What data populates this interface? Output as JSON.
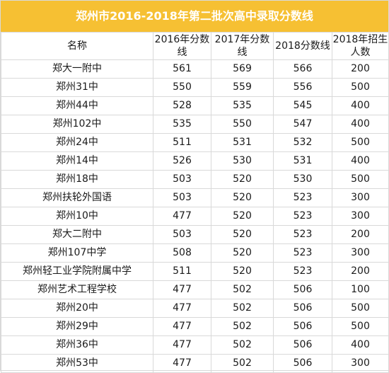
{
  "title": "郑州市2016-2018年第二批次高中录取分数线",
  "headers": [
    "名称",
    "2016年分数线",
    "2017年分数线",
    "2018分数线",
    "2018年招生人数"
  ],
  "rows": [
    [
      "郑大一附中",
      "561",
      "569",
      "566",
      "200"
    ],
    [
      "郑州31中",
      "550",
      "559",
      "556",
      "500"
    ],
    [
      "郑州44中",
      "528",
      "535",
      "545",
      "400"
    ],
    [
      "郑州102中",
      "535",
      "550",
      "547",
      "400"
    ],
    [
      "郑州24中",
      "511",
      "531",
      "532",
      "500"
    ],
    [
      "郑州14中",
      "526",
      "530",
      "531",
      "400"
    ],
    [
      "郑州18中",
      "503",
      "520",
      "530",
      "500"
    ],
    [
      "郑州扶轮外国语",
      "503",
      "520",
      "523",
      "300"
    ],
    [
      "郑州10中",
      "477",
      "520",
      "523",
      "300"
    ],
    [
      "郑大二附中",
      "503",
      "520",
      "523",
      "200"
    ],
    [
      "郑州107中学",
      "508",
      "520",
      "523",
      "300"
    ],
    [
      "郑州轻工业学院附属中学",
      "511",
      "520",
      "523",
      "200"
    ],
    [
      "郑州艺术工程学校",
      "477",
      "502",
      "506",
      "100"
    ],
    [
      "郑州20中",
      "477",
      "502",
      "506",
      "500"
    ],
    [
      "郑州29中",
      "477",
      "502",
      "506",
      "500"
    ],
    [
      "郑州36中",
      "477",
      "502",
      "506",
      "400"
    ],
    [
      "郑州53中",
      "477",
      "502",
      "506",
      "300"
    ]
  ],
  "colors": {
    "title_bg": "#f6c033",
    "title_text": "#ffffff",
    "grid": "#d9d9d9"
  }
}
